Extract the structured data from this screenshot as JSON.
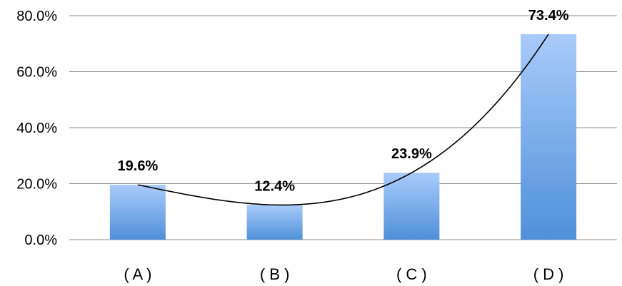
{
  "chart_data": {
    "type": "bar",
    "categories": [
      "( A )",
      "( B )",
      "( C )",
      "( D )"
    ],
    "values": [
      19.6,
      12.4,
      23.9,
      73.4
    ],
    "data_labels": [
      "19.6%",
      "12.4%",
      "23.9%",
      "73.4%"
    ],
    "y_ticks": [
      0,
      20,
      40,
      60,
      80
    ],
    "y_tick_labels": [
      "0.0%",
      "20.0%",
      "40.0%",
      "60.0%",
      "80.0%"
    ],
    "ylim": [
      0,
      80
    ],
    "grid": true,
    "trendline": "polynomial",
    "colors": {
      "bar_top": "#a9cbfa",
      "bar_bottom": "#4f90da",
      "grid": "#8c8c8c"
    }
  }
}
